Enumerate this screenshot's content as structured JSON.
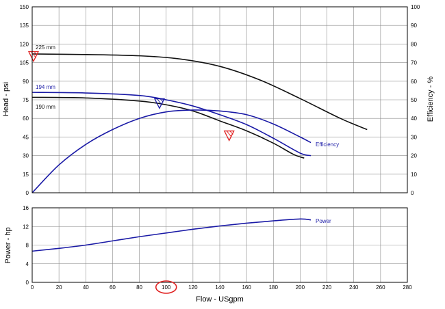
{
  "chart_data": [
    {
      "type": "line",
      "panel": "head-efficiency",
      "xlim": [
        0,
        280
      ],
      "ylim": [
        0,
        150
      ],
      "y2lim": [
        0,
        100
      ],
      "ylabel": "Head - psi",
      "y2label": "Efficiency - %",
      "xticks": [
        0,
        20,
        40,
        60,
        80,
        100,
        120,
        140,
        160,
        180,
        200,
        220,
        240,
        260,
        280
      ],
      "yticks": [
        0,
        15,
        30,
        45,
        60,
        75,
        90,
        105,
        120,
        135,
        150
      ],
      "y2ticks": [
        0,
        10,
        20,
        30,
        40,
        50,
        60,
        70,
        80,
        90,
        100
      ],
      "grid": true,
      "series": [
        {
          "name": "225 mm",
          "axis": "left",
          "color": "#111111",
          "x": [
            0,
            40,
            80,
            110,
            140,
            170,
            200,
            230,
            250
          ],
          "y": [
            112,
            111.5,
            110.5,
            108,
            102,
            91,
            76,
            60,
            51
          ]
        },
        {
          "name": "194 mm",
          "axis": "left",
          "color": "#1a1aa6",
          "x": [
            0,
            40,
            80,
            100,
            120,
            140,
            160,
            180,
            200,
            208
          ],
          "y": [
            81,
            80.5,
            78.5,
            75,
            70,
            63,
            55,
            44,
            32,
            30
          ]
        },
        {
          "name": "190 mm",
          "axis": "left",
          "color": "#111111",
          "x": [
            0,
            40,
            80,
            100,
            120,
            140,
            160,
            180,
            195,
            203
          ],
          "y": [
            77,
            76.5,
            74,
            71,
            66,
            58,
            50,
            40,
            31,
            28
          ]
        },
        {
          "name": "Efficiency",
          "axis": "right",
          "color": "#1a1aa6",
          "x": [
            0,
            20,
            40,
            60,
            80,
            100,
            120,
            140,
            160,
            180,
            200,
            208
          ],
          "y": [
            0,
            15,
            26,
            34,
            40,
            43.5,
            44.5,
            44,
            42,
            37,
            30,
            27
          ]
        }
      ],
      "markers": [
        {
          "x": 1,
          "y": 110,
          "color": "#e02020"
        },
        {
          "x": 95,
          "y": 72,
          "color": "#1a1aa6"
        },
        {
          "x": 147,
          "y": 46,
          "color": "#e02020"
        }
      ],
      "labels": {
        "l225": "225 mm",
        "l194": "194 mm",
        "l190": "190 mm",
        "efficiency": "Efficiency"
      }
    },
    {
      "type": "line",
      "panel": "power",
      "xlim": [
        0,
        280
      ],
      "ylim": [
        0,
        16
      ],
      "xlabel": "Flow - USgpm",
      "ylabel": "Power - hp",
      "xticks": [
        0,
        20,
        40,
        60,
        80,
        100,
        120,
        140,
        160,
        180,
        200,
        220,
        240,
        260,
        280
      ],
      "yticks": [
        0,
        4,
        8,
        12,
        16
      ],
      "grid": true,
      "highlighted_xtick": 100,
      "highlight_color": "#e02020",
      "series": [
        {
          "name": "Power",
          "color": "#1a1aa6",
          "x": [
            0,
            20,
            40,
            60,
            80,
            100,
            120,
            140,
            160,
            180,
            200,
            208
          ],
          "y": [
            6.7,
            7.3,
            8.0,
            8.9,
            9.8,
            10.6,
            11.4,
            12.1,
            12.7,
            13.2,
            13.6,
            13.4
          ]
        }
      ],
      "labels": {
        "power": "Power"
      }
    }
  ]
}
